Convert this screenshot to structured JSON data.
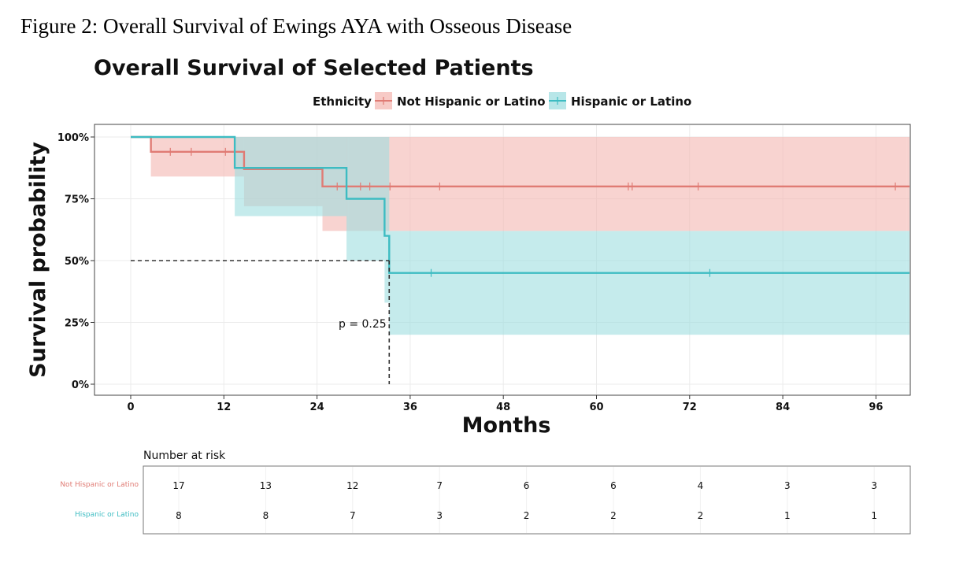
{
  "figure_caption": "Figure 2: Overall Survival of Ewings AYA with Osseous Disease",
  "chart_data": {
    "type": "line",
    "title": "Overall Survival of Selected Patients",
    "xlabel": "Months",
    "ylabel": "Survival probability",
    "xlim": [
      0,
      100
    ],
    "ylim": [
      0,
      1
    ],
    "x_ticks": [
      0,
      12,
      24,
      36,
      48,
      60,
      72,
      84,
      96
    ],
    "y_ticks": [
      "0%",
      "25%",
      "50%",
      "75%",
      "100%"
    ],
    "grid": true,
    "legend": {
      "title": "Ethnicity",
      "placement": "top",
      "entries": [
        "Not Hispanic or Latino",
        "Hispanic or Latino"
      ]
    },
    "pvalue_text": "p = 0.25",
    "median_line": {
      "y": 0.5,
      "x": 33.3
    },
    "series": [
      {
        "name": "Not Hispanic or Latino",
        "color": "#E07B74",
        "fill": "#F4B8B3",
        "steps": [
          [
            0,
            1.0
          ],
          [
            2.6,
            0.94
          ],
          [
            14.6,
            0.87
          ],
          [
            24.7,
            0.8
          ],
          [
            100,
            0.8
          ]
        ],
        "ci": [
          [
            0,
            1.0,
            1.0
          ],
          [
            2.6,
            0.84,
            1.0
          ],
          [
            14.6,
            0.72,
            1.0
          ],
          [
            24.7,
            0.62,
            1.0
          ],
          [
            28,
            0.62,
            1.0
          ],
          [
            100,
            0.62,
            1.0
          ]
        ],
        "censors": [
          [
            5.1,
            0.94
          ],
          [
            7.8,
            0.94
          ],
          [
            12.2,
            0.94
          ],
          [
            26.6,
            0.8
          ],
          [
            29.6,
            0.8
          ],
          [
            30.8,
            0.8
          ],
          [
            33.4,
            0.8
          ],
          [
            39.8,
            0.8
          ],
          [
            64.1,
            0.8
          ],
          [
            64.6,
            0.8
          ],
          [
            73.1,
            0.8
          ],
          [
            98.5,
            0.8
          ]
        ]
      },
      {
        "name": "Hispanic or Latino",
        "color": "#3DBCC2",
        "fill": "#9FDDE0",
        "steps": [
          [
            0,
            1.0
          ],
          [
            13.4,
            0.875
          ],
          [
            27.8,
            0.75
          ],
          [
            32.7,
            0.6
          ],
          [
            33.3,
            0.45
          ],
          [
            100,
            0.45
          ]
        ],
        "ci": [
          [
            0,
            1.0,
            1.0
          ],
          [
            13.4,
            0.68,
            1.0
          ],
          [
            27.8,
            0.5,
            1.0
          ],
          [
            32.7,
            0.33,
            1.0
          ],
          [
            33.3,
            0.2,
            0.62
          ],
          [
            100,
            0.2,
            0.62
          ]
        ],
        "censors": [
          [
            38.7,
            0.45
          ],
          [
            74.6,
            0.45
          ]
        ]
      }
    ],
    "risk_table": {
      "title": "Number at risk",
      "times": [
        0,
        12,
        24,
        36,
        48,
        60,
        72,
        84,
        96
      ],
      "rows": [
        {
          "label": "Not Hispanic or Latino",
          "color": "#E07B74",
          "values": [
            17,
            13,
            12,
            7,
            6,
            6,
            4,
            3,
            3
          ]
        },
        {
          "label": "Hispanic or Latino",
          "color": "#3DBCC2",
          "values": [
            8,
            8,
            7,
            3,
            2,
            2,
            2,
            1,
            1
          ]
        }
      ]
    }
  }
}
